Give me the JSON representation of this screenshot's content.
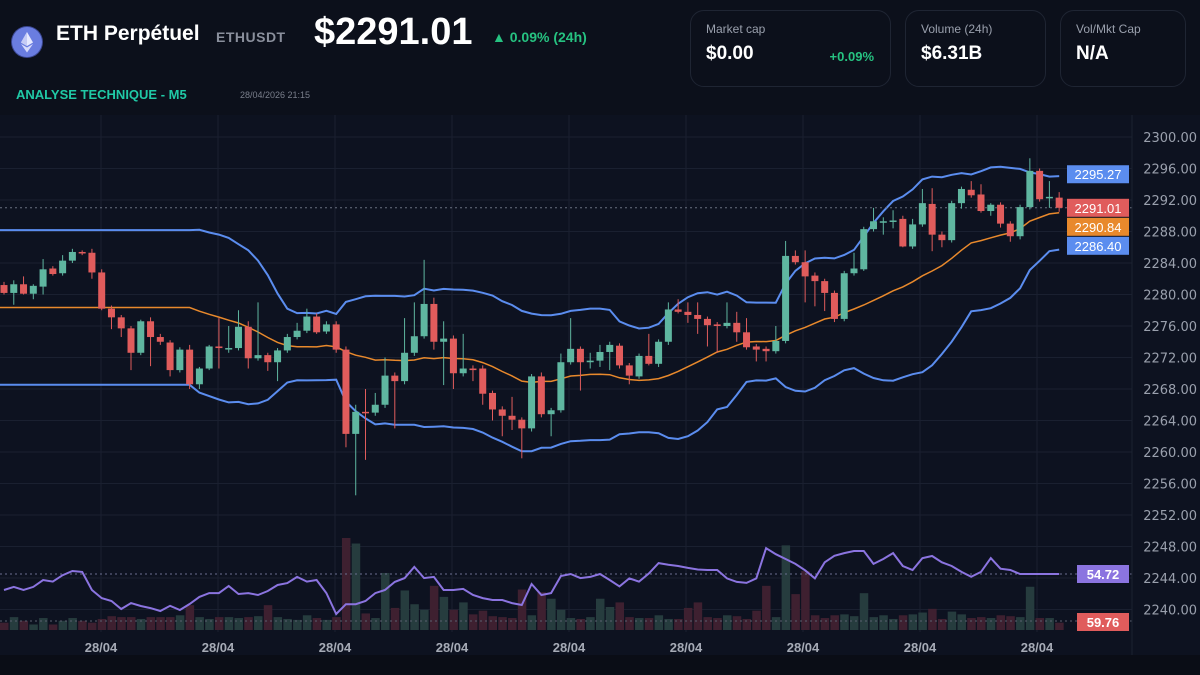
{
  "header": {
    "icon": "ethereum-icon",
    "title": "ETH Perpétuel",
    "symbol": "ETHUSDT",
    "price": "$2291.01",
    "change": "▲ 0.09% (24h)",
    "subtitle": "ANALYSE TECHNIQUE - M5",
    "timestamp": "28/04/2026 21:15"
  },
  "cards": [
    {
      "label": "Market cap",
      "value": "$0.00",
      "change": "+0.09%"
    },
    {
      "label": "Volume (24h)",
      "value": "$6.31B"
    },
    {
      "label": "Vol/Mkt Cap",
      "value": "N/A"
    }
  ],
  "colors": {
    "up": "#5fb6a0",
    "down": "#e05c5c",
    "band": "#5b8def",
    "ma": "#e8892c",
    "rsi": "#8b74e0",
    "background": "#0c101b"
  },
  "chart_data": {
    "type": "candlestick",
    "y_ticks": [
      "2300.00",
      "2296.00",
      "2292.00",
      "2288.00",
      "2284.00",
      "2280.00",
      "2276.00",
      "2272.00",
      "2268.00",
      "2264.00",
      "2260.00",
      "2256.00",
      "2252.00",
      "2248.00",
      "2244.00",
      "2240.00"
    ],
    "ylim": [
      2240,
      2300
    ],
    "x_ticks": [
      "28/04",
      "28/04",
      "28/04",
      "28/04",
      "28/04",
      "28/04",
      "28/04",
      "28/04",
      "28/04"
    ],
    "grid": true,
    "last_price_line": 2291.01,
    "markers": [
      {
        "label": "2295.27",
        "value": 2295.27,
        "color": "#5b8def"
      },
      {
        "label": "2291.01",
        "value": 2291.01,
        "color": "#e05c5c"
      },
      {
        "label": "2290.84",
        "value": 2290.84,
        "color": "#e8892c"
      },
      {
        "label": "2286.40",
        "value": 2286.4,
        "color": "#5b8def"
      }
    ],
    "indicator_markers": [
      {
        "label": "54.72",
        "color": "#8b74e0"
      },
      {
        "label": "59.76",
        "color": "#e05c5c"
      }
    ],
    "indicators": {
      "bollinger_period": 20,
      "bollinger_std": 2,
      "ma_period": 20
    },
    "ohlc": [
      [
        2281.2,
        2281.6,
        2280.0,
        2280.2
      ],
      [
        2280.2,
        2281.8,
        2278.7,
        2281.3
      ],
      [
        2281.3,
        2282.3,
        2280.0,
        2280.1
      ],
      [
        2280.1,
        2281.3,
        2279.4,
        2281.1
      ],
      [
        2281.0,
        2284.5,
        2280.0,
        2283.2
      ],
      [
        2283.3,
        2283.6,
        2282.4,
        2282.6
      ],
      [
        2282.7,
        2285.0,
        2282.4,
        2284.3
      ],
      [
        2284.3,
        2285.8,
        2284.0,
        2285.4
      ],
      [
        2285.4,
        2285.6,
        2285.0,
        2285.3
      ],
      [
        2285.3,
        2285.8,
        2282.0,
        2282.8
      ],
      [
        2282.8,
        2283.2,
        2278.0,
        2278.2
      ],
      [
        2278.2,
        2278.6,
        2275.6,
        2277.1
      ],
      [
        2277.1,
        2277.4,
        2274.6,
        2275.7
      ],
      [
        2275.7,
        2276.0,
        2270.4,
        2272.6
      ],
      [
        2272.6,
        2276.8,
        2272.3,
        2276.6
      ],
      [
        2276.6,
        2277.1,
        2270.9,
        2274.6
      ],
      [
        2274.6,
        2275.0,
        2273.6,
        2274.0
      ],
      [
        2273.9,
        2274.2,
        2269.6,
        2270.4
      ],
      [
        2270.4,
        2273.3,
        2270.1,
        2273.0
      ],
      [
        2273.0,
        2273.6,
        2268.0,
        2268.6
      ],
      [
        2268.6,
        2270.8,
        2268.0,
        2270.6
      ],
      [
        2270.6,
        2273.6,
        2270.4,
        2273.4
      ],
      [
        2273.4,
        2277.0,
        2270.6,
        2273.2
      ],
      [
        2273.2,
        2276.0,
        2272.6,
        2273.2
      ],
      [
        2273.2,
        2278.0,
        2272.9,
        2275.9
      ],
      [
        2275.9,
        2276.6,
        2270.6,
        2271.9
      ],
      [
        2271.9,
        2279.0,
        2271.6,
        2272.3
      ],
      [
        2272.3,
        2272.6,
        2270.3,
        2271.4
      ],
      [
        2271.4,
        2273.2,
        2269.0,
        2272.9
      ],
      [
        2272.9,
        2275.0,
        2272.6,
        2274.6
      ],
      [
        2274.6,
        2276.4,
        2274.3,
        2275.4
      ],
      [
        2275.4,
        2278.2,
        2275.1,
        2277.2
      ],
      [
        2277.2,
        2277.6,
        2275.0,
        2275.2
      ],
      [
        2275.3,
        2276.6,
        2275.0,
        2276.2
      ],
      [
        2276.2,
        2276.6,
        2272.6,
        2273.0
      ],
      [
        2273.0,
        2273.4,
        2260.6,
        2262.3
      ],
      [
        2262.3,
        2266.0,
        2254.5,
        2265.1
      ],
      [
        2265.1,
        2268.0,
        2259.0,
        2265.0
      ],
      [
        2265.0,
        2267.5,
        2264.6,
        2266.0
      ],
      [
        2266.0,
        2272.0,
        2265.6,
        2269.7
      ],
      [
        2269.7,
        2270.1,
        2263.0,
        2269.0
      ],
      [
        2269.0,
        2277.0,
        2268.6,
        2272.6
      ],
      [
        2272.6,
        2279.0,
        2272.2,
        2274.7
      ],
      [
        2274.7,
        2284.4,
        2274.4,
        2278.8
      ],
      [
        2278.8,
        2279.6,
        2273.0,
        2274.0
      ],
      [
        2274.0,
        2276.6,
        2268.5,
        2274.4
      ],
      [
        2274.4,
        2274.8,
        2268.0,
        2270.0
      ],
      [
        2270.0,
        2275.0,
        2269.6,
        2270.6
      ],
      [
        2270.6,
        2271.0,
        2269.0,
        2270.4
      ],
      [
        2270.6,
        2271.0,
        2266.0,
        2267.4
      ],
      [
        2267.5,
        2267.8,
        2264.0,
        2265.4
      ],
      [
        2265.4,
        2265.8,
        2262.0,
        2264.6
      ],
      [
        2264.6,
        2267.0,
        2262.8,
        2264.1
      ],
      [
        2264.1,
        2264.4,
        2259.2,
        2263.0
      ],
      [
        2263.0,
        2269.9,
        2262.6,
        2269.6
      ],
      [
        2269.6,
        2270.1,
        2264.4,
        2264.8
      ],
      [
        2264.8,
        2265.6,
        2262.0,
        2265.3
      ],
      [
        2265.3,
        2272.5,
        2265.0,
        2271.4
      ],
      [
        2271.4,
        2277.0,
        2271.1,
        2273.1
      ],
      [
        2273.1,
        2273.4,
        2267.8,
        2271.4
      ],
      [
        2271.4,
        2272.6,
        2270.6,
        2271.6
      ],
      [
        2271.6,
        2273.6,
        2270.8,
        2272.7
      ],
      [
        2272.7,
        2274.0,
        2270.4,
        2273.6
      ],
      [
        2273.5,
        2273.8,
        2270.6,
        2271.0
      ],
      [
        2271.0,
        2271.3,
        2268.6,
        2269.7
      ],
      [
        2269.6,
        2272.5,
        2269.3,
        2272.2
      ],
      [
        2272.2,
        2275.0,
        2271.0,
        2271.2
      ],
      [
        2271.2,
        2274.3,
        2270.8,
        2274.0
      ],
      [
        2274.0,
        2279.0,
        2273.6,
        2278.1
      ],
      [
        2278.1,
        2279.4,
        2277.6,
        2277.8
      ],
      [
        2277.8,
        2279.0,
        2276.4,
        2277.4
      ],
      [
        2277.4,
        2279.0,
        2275.0,
        2276.9
      ],
      [
        2276.9,
        2277.2,
        2273.4,
        2276.1
      ],
      [
        2276.2,
        2276.5,
        2272.6,
        2276.0
      ],
      [
        2276.0,
        2279.0,
        2275.7,
        2276.4
      ],
      [
        2276.4,
        2277.8,
        2274.0,
        2275.2
      ],
      [
        2275.2,
        2277.0,
        2273.0,
        2273.3
      ],
      [
        2273.4,
        2273.7,
        2271.5,
        2273.0
      ],
      [
        2273.1,
        2273.4,
        2271.5,
        2272.8
      ],
      [
        2272.8,
        2276.0,
        2272.5,
        2274.1
      ],
      [
        2274.1,
        2286.8,
        2273.8,
        2284.9
      ],
      [
        2284.9,
        2285.6,
        2283.8,
        2284.1
      ],
      [
        2284.1,
        2285.6,
        2279.0,
        2282.3
      ],
      [
        2282.4,
        2282.8,
        2278.5,
        2281.7
      ],
      [
        2281.7,
        2282.0,
        2277.9,
        2280.2
      ],
      [
        2280.2,
        2280.5,
        2276.5,
        2276.9
      ],
      [
        2276.9,
        2283.0,
        2276.6,
        2282.7
      ],
      [
        2282.7,
        2285.3,
        2282.4,
        2283.3
      ],
      [
        2283.2,
        2288.6,
        2283.0,
        2288.3
      ],
      [
        2288.3,
        2291.0,
        2288.0,
        2289.3
      ],
      [
        2289.3,
        2289.8,
        2287.6,
        2289.3
      ],
      [
        2289.4,
        2290.7,
        2288.4,
        2289.4
      ],
      [
        2289.6,
        2290.0,
        2286.0,
        2286.1
      ],
      [
        2286.1,
        2289.6,
        2285.8,
        2288.9
      ],
      [
        2288.9,
        2293.4,
        2288.6,
        2291.6
      ],
      [
        2291.5,
        2293.5,
        2285.5,
        2287.6
      ],
      [
        2287.6,
        2288.0,
        2286.0,
        2286.9
      ],
      [
        2286.9,
        2291.9,
        2286.6,
        2291.6
      ],
      [
        2291.6,
        2293.7,
        2290.9,
        2293.4
      ],
      [
        2293.3,
        2294.4,
        2292.3,
        2292.6
      ],
      [
        2292.7,
        2294.0,
        2290.4,
        2290.6
      ],
      [
        2290.6,
        2291.6,
        2290.0,
        2291.4
      ],
      [
        2291.4,
        2291.7,
        2288.5,
        2289.0
      ],
      [
        2289.0,
        2289.3,
        2286.7,
        2287.4
      ],
      [
        2287.4,
        2291.4,
        2287.0,
        2291.1
      ],
      [
        2291.1,
        2297.3,
        2290.8,
        2295.7
      ],
      [
        2295.7,
        2296.0,
        2291.8,
        2292.1
      ],
      [
        2292.3,
        2294.4,
        2291.0,
        2292.4
      ],
      [
        2292.3,
        2293.0,
        2290.5,
        2291.01
      ]
    ],
    "volume_relative": [
      8,
      14,
      10,
      6,
      13,
      6,
      10,
      13,
      10,
      8,
      12,
      15,
      14,
      14,
      12,
      14,
      14,
      14,
      16,
      27,
      14,
      12,
      14,
      14,
      13,
      14,
      15,
      27,
      14,
      12,
      11,
      16,
      13,
      11,
      14,
      100,
      94,
      18,
      13,
      62,
      24,
      43,
      28,
      22,
      48,
      36,
      22,
      30,
      17,
      21,
      15,
      14,
      13,
      44,
      16,
      41,
      34,
      22,
      13,
      12,
      14,
      34,
      25,
      30,
      14,
      13,
      13,
      16,
      12,
      12,
      24,
      30,
      14,
      13,
      16,
      15,
      12,
      21,
      48,
      14,
      92,
      39,
      64,
      16,
      13,
      16,
      17,
      15,
      40,
      14,
      16,
      12,
      16,
      17,
      19,
      23,
      12,
      20,
      17,
      13,
      14,
      13,
      16,
      15,
      14,
      47,
      13,
      13,
      8
    ],
    "rsi": [
      44.8,
      46.7,
      44.8,
      46.7,
      51,
      50,
      54,
      56.6,
      56,
      44.8,
      39.8,
      38,
      33,
      36.7,
      34.9,
      33.6,
      31.8,
      35,
      32.4,
      36.1,
      40.5,
      42.9,
      42.9,
      47.3,
      42.3,
      42.9,
      41.7,
      44.2,
      47.9,
      49.1,
      52.9,
      50,
      51,
      42.9,
      29.9,
      36,
      36,
      38,
      42.9,
      44.8,
      49.8,
      52.2,
      59.1,
      52.2,
      52.9,
      44.8,
      44.8,
      45.5,
      41.7,
      39.8,
      38.6,
      38.6,
      36.7,
      35.5,
      48.5,
      41.7,
      42.9,
      53.5,
      54.7,
      52.2,
      52.9,
      54.7,
      51,
      47,
      52,
      50,
      55,
      61.5,
      60.5,
      59.7,
      58.5,
      57.5,
      57.2,
      57.2,
      52,
      49.8,
      49.2,
      52,
      70.8,
      67,
      64,
      61,
      57,
      52,
      62,
      66,
      67.7,
      69,
      69,
      61,
      64,
      67.7,
      59.7,
      57.2,
      64.6,
      65.9,
      62,
      59.7,
      56,
      53,
      56,
      64.6,
      58,
      57.2,
      54.7,
      54.7,
      54.7,
      54.7,
      54.7
    ]
  }
}
